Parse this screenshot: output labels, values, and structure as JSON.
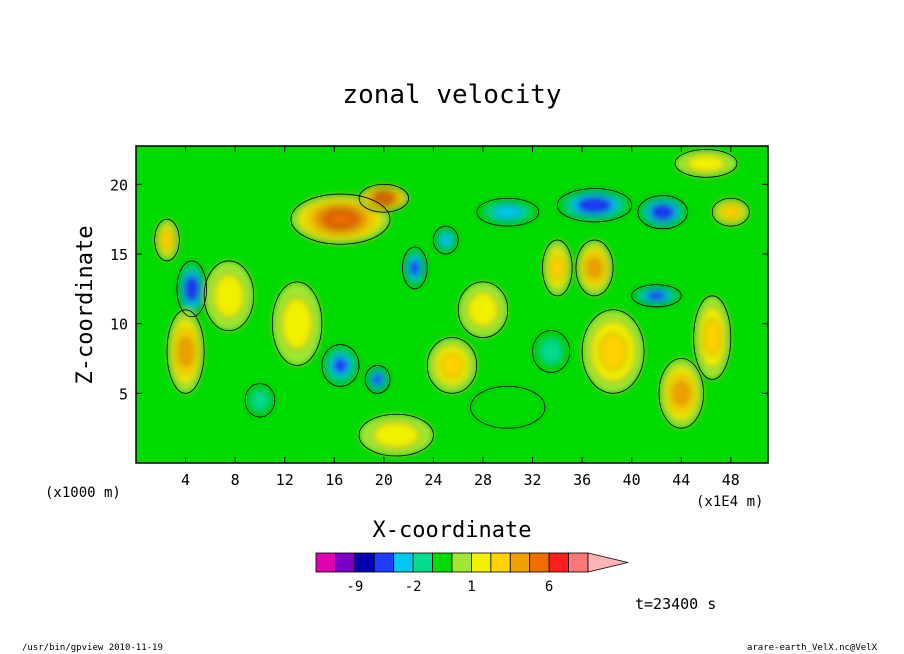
{
  "chart_data": {
    "type": "heatmap",
    "title": "zonal velocity",
    "xlabel": "X-coordinate",
    "ylabel": "Z-coordinate",
    "x_unit": "(x1E4 m)",
    "y_unit": "(x1000 m)",
    "xlim": [
      0,
      51
    ],
    "ylim": [
      0,
      22.75
    ],
    "x_ticks": [
      4,
      8,
      12,
      16,
      20,
      24,
      28,
      32,
      36,
      40,
      44,
      48
    ],
    "y_ticks": [
      5,
      10,
      15,
      20
    ],
    "time_label": "t=23400 s",
    "colorbar": {
      "levels": [
        -15,
        -12,
        -9,
        -6,
        -3,
        -2,
        -1,
        0,
        1,
        2,
        3,
        4,
        6,
        9,
        12
      ],
      "tick_labels": [
        {
          "value": -9,
          "label": "-9"
        },
        {
          "value": -2,
          "label": "-2"
        },
        {
          "value": 1,
          "label": "1"
        },
        {
          "value": 6,
          "label": "6"
        }
      ],
      "colors": [
        "#e000b4",
        "#7a00c8",
        "#0000b4",
        "#1e3cff",
        "#00c8f0",
        "#00dc8c",
        "#00dc00",
        "#a0e632",
        "#f0f000",
        "#ffd200",
        "#f0a000",
        "#f06e00",
        "#ff1e1e",
        "#ff7878",
        "#ffb4b4"
      ]
    },
    "features": [
      {
        "x": 4.5,
        "z": 12.5,
        "rx": 1.2,
        "rz": 2.0,
        "value": -5
      },
      {
        "x": 4.0,
        "z": 8.0,
        "rx": 1.5,
        "rz": 3.0,
        "value": 4
      },
      {
        "x": 2.5,
        "z": 16.0,
        "rx": 1.0,
        "rz": 1.5,
        "value": 3
      },
      {
        "x": 16.5,
        "z": 17.5,
        "rx": 4.0,
        "rz": 1.8,
        "value": 6
      },
      {
        "x": 20.0,
        "z": 19.0,
        "rx": 2.0,
        "rz": 1.0,
        "value": 6
      },
      {
        "x": 16.5,
        "z": 7.0,
        "rx": 1.5,
        "rz": 1.5,
        "value": -4
      },
      {
        "x": 19.5,
        "z": 6.0,
        "rx": 1.0,
        "rz": 1.0,
        "value": -4
      },
      {
        "x": 22.5,
        "z": 14.0,
        "rx": 1.0,
        "rz": 1.5,
        "value": -4
      },
      {
        "x": 25.0,
        "z": 16.0,
        "rx": 1.0,
        "rz": 1.0,
        "value": -3
      },
      {
        "x": 30.0,
        "z": 18.0,
        "rx": 2.5,
        "rz": 1.0,
        "value": -3
      },
      {
        "x": 37.0,
        "z": 18.5,
        "rx": 3.0,
        "rz": 1.2,
        "value": -5
      },
      {
        "x": 42.5,
        "z": 18.0,
        "rx": 2.0,
        "rz": 1.2,
        "value": -5
      },
      {
        "x": 37.0,
        "z": 14.0,
        "rx": 1.5,
        "rz": 2.0,
        "value": 4
      },
      {
        "x": 34.0,
        "z": 14.0,
        "rx": 1.2,
        "rz": 2.0,
        "value": 3
      },
      {
        "x": 42.0,
        "z": 12.0,
        "rx": 2.0,
        "rz": 0.8,
        "value": -4
      },
      {
        "x": 38.5,
        "z": 8.0,
        "rx": 2.5,
        "rz": 3.0,
        "value": 3
      },
      {
        "x": 44.0,
        "z": 5.0,
        "rx": 1.8,
        "rz": 2.5,
        "value": 4
      },
      {
        "x": 46.5,
        "z": 9.0,
        "rx": 1.5,
        "rz": 3.0,
        "value": 3
      },
      {
        "x": 48.0,
        "z": 18.0,
        "rx": 1.5,
        "rz": 1.0,
        "value": 3
      },
      {
        "x": 10.0,
        "z": 4.5,
        "rx": 1.2,
        "rz": 1.2,
        "value": -2
      },
      {
        "x": 25.5,
        "z": 7.0,
        "rx": 2.0,
        "rz": 2.0,
        "value": 3
      },
      {
        "x": 33.5,
        "z": 8.0,
        "rx": 1.5,
        "rz": 1.5,
        "value": -2
      },
      {
        "x": 7.5,
        "z": 12.0,
        "rx": 2.0,
        "rz": 2.5,
        "value": 2
      },
      {
        "x": 13.0,
        "z": 10.0,
        "rx": 2.0,
        "rz": 3.0,
        "value": 2
      },
      {
        "x": 28.0,
        "z": 11.0,
        "rx": 2.0,
        "rz": 2.0,
        "value": 2
      },
      {
        "x": 21.0,
        "z": 2.0,
        "rx": 3.0,
        "rz": 1.5,
        "value": 2
      },
      {
        "x": 30.0,
        "z": 4.0,
        "rx": 3.0,
        "rz": 1.5,
        "value": -1
      },
      {
        "x": 46.0,
        "z": 21.5,
        "rx": 2.5,
        "rz": 1.0,
        "value": 2
      }
    ]
  },
  "footer": {
    "left": "/usr/bin/gpview  2010-11-19",
    "right": "arare-earth_VelX.nc@VelX"
  }
}
